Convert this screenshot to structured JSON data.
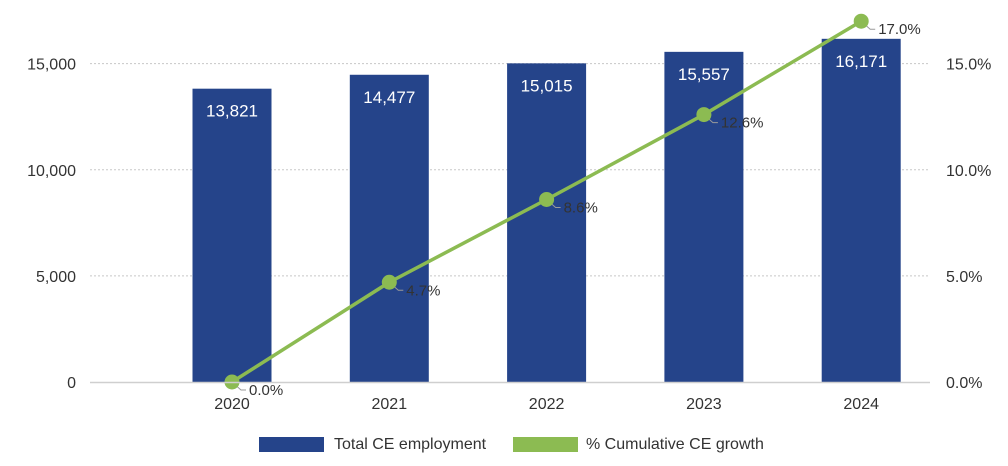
{
  "chart_data": {
    "type": "bar",
    "categories": [
      "2020",
      "2021",
      "2022",
      "2023",
      "2024"
    ],
    "series": [
      {
        "name": "Total CE employment",
        "type": "bar",
        "axis": "left",
        "values": [
          13821,
          14477,
          15015,
          15557,
          16171
        ],
        "labels": [
          "13,821",
          "14,477",
          "15,015",
          "15,557",
          "16,171"
        ],
        "color": "#25448a"
      },
      {
        "name": "% Cumulative CE growth",
        "type": "line",
        "axis": "right",
        "values": [
          0.0,
          4.7,
          8.6,
          12.6,
          17.0
        ],
        "labels": [
          "0.0%",
          "4.7%",
          "8.6%",
          "12.6%",
          "17.0%"
        ],
        "color": "#8cbb52"
      }
    ],
    "y_left": {
      "ylim": [
        0,
        18000
      ],
      "ticks": [
        0,
        5000,
        10000,
        15000
      ],
      "tick_labels": [
        "0",
        "5,000",
        "10,000",
        "15,000"
      ]
    },
    "y_right": {
      "ylim": [
        0,
        18
      ],
      "ticks": [
        0,
        5,
        10,
        15
      ],
      "tick_labels": [
        "0.0%",
        "5.0%",
        "10.0%",
        "15.0%"
      ]
    },
    "title": "",
    "xlabel": "",
    "ylabel": "",
    "grid": "horizontal dotted",
    "legend_position": "bottom"
  }
}
